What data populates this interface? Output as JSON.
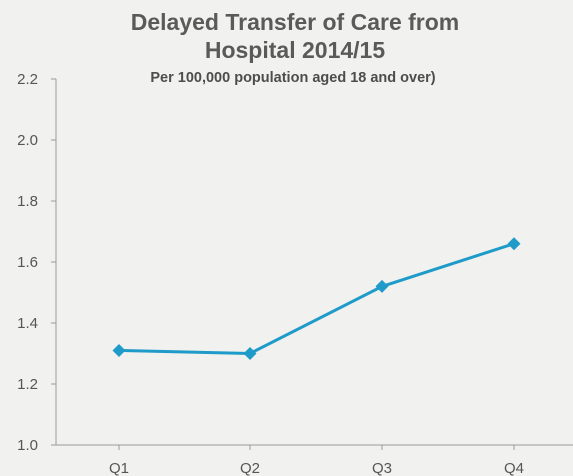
{
  "chart_data": {
    "type": "line",
    "title_line1": "Delayed Transfer of Care from",
    "title_line2": "Hospital 2014/15",
    "subtitle": "Per 100,000 population aged 18 and over)",
    "categories": [
      "Q1",
      "Q2",
      "Q3",
      "Q4"
    ],
    "series": [
      {
        "values": [
          1.31,
          1.3,
          1.52,
          1.66
        ]
      }
    ],
    "ylim": [
      1.0,
      2.2
    ],
    "yticks": [
      "1.0",
      "1.2",
      "1.4",
      "1.6",
      "1.8",
      "2.0",
      "2.2"
    ],
    "grid": false,
    "line_color": "#1e9bc9",
    "axis_color": "#9a9a9a"
  }
}
